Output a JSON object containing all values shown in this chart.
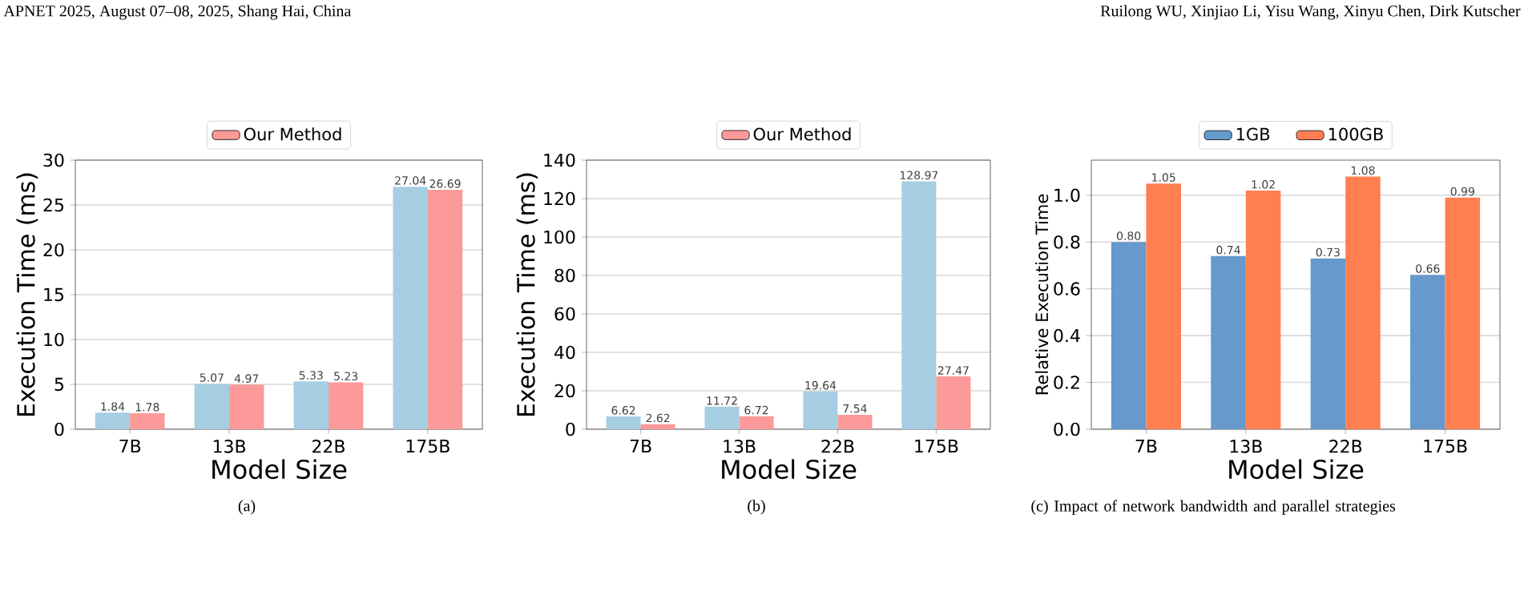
{
  "chart_data": [
    {
      "type": "bar",
      "xlabel": "Model Size",
      "ylabel": "Execution Time (ms)",
      "categories": [
        "7B",
        "13B",
        "22B",
        "175B"
      ],
      "series": [
        {
          "color": "#a6cee3",
          "values": [
            1.84,
            5.07,
            5.33,
            27.04
          ]
        },
        {
          "name": "Our Method",
          "color": "#fb9a99",
          "values": [
            1.78,
            4.97,
            5.23,
            26.69
          ]
        }
      ],
      "ylim": [
        0,
        30
      ],
      "yticks": [
        0,
        5,
        10,
        15,
        20,
        25,
        30
      ],
      "grid": "y",
      "legend": "top",
      "data_labels": true,
      "annotations": [
        "APNET 2025, August 07–08, 2025, Shang Hai, China",
        "(a)"
      ]
    },
    {
      "type": "bar",
      "xlabel": "Model Size",
      "ylabel": "Execution Time (ms)",
      "categories": [
        "7B",
        "13B",
        "22B",
        "175B"
      ],
      "series": [
        {
          "color": "#a6cee3",
          "values": [
            6.62,
            11.72,
            19.64,
            128.97
          ]
        },
        {
          "name": "Our Method",
          "color": "#fb9a99",
          "values": [
            2.62,
            6.72,
            7.54,
            27.47
          ]
        }
      ],
      "ylim": [
        0,
        140
      ],
      "yticks": [
        0,
        20,
        40,
        60,
        80,
        100,
        120,
        140
      ],
      "grid": "y",
      "legend": "top",
      "data_labels": true,
      "annotations": [
        "(b)"
      ]
    },
    {
      "type": "bar",
      "xlabel": "Model Size",
      "ylabel": "Relative Execution Time",
      "categories": [
        "7B",
        "13B",
        "22B",
        "175B"
      ],
      "series": [
        {
          "name": "1GB",
          "color": "#6699cc",
          "values": [
            0.8,
            0.74,
            0.73,
            0.66
          ],
          "value_labels": [
            "0.80",
            "0.74",
            "0.73",
            "0.66"
          ]
        },
        {
          "name": "100GB",
          "color": "#ff7f50",
          "values": [
            1.05,
            1.02,
            1.08,
            0.99
          ],
          "value_labels": [
            "1.05",
            "1.02",
            "1.08",
            "0.99"
          ]
        }
      ],
      "ylim": [
        0,
        1.15
      ],
      "yticks": [
        {
          "value": 0,
          "label": "0.0"
        },
        {
          "value": 0.2,
          "label": "0.2"
        },
        {
          "value": 0.4,
          "label": "0.4"
        },
        {
          "value": 0.6,
          "label": "0.6"
        },
        {
          "value": 0.8,
          "label": "0.8"
        },
        {
          "value": 1.0,
          "label": "1.0"
        }
      ],
      "grid": "y",
      "legend": "top",
      "annotations": [
        "Ruilong WU, Xinjiao Li, Yisu Wang, Xinyu Chen, Dirk Kutscher",
        "(c) Impact of network bandwidth and parallel strategies"
      ]
    }
  ]
}
